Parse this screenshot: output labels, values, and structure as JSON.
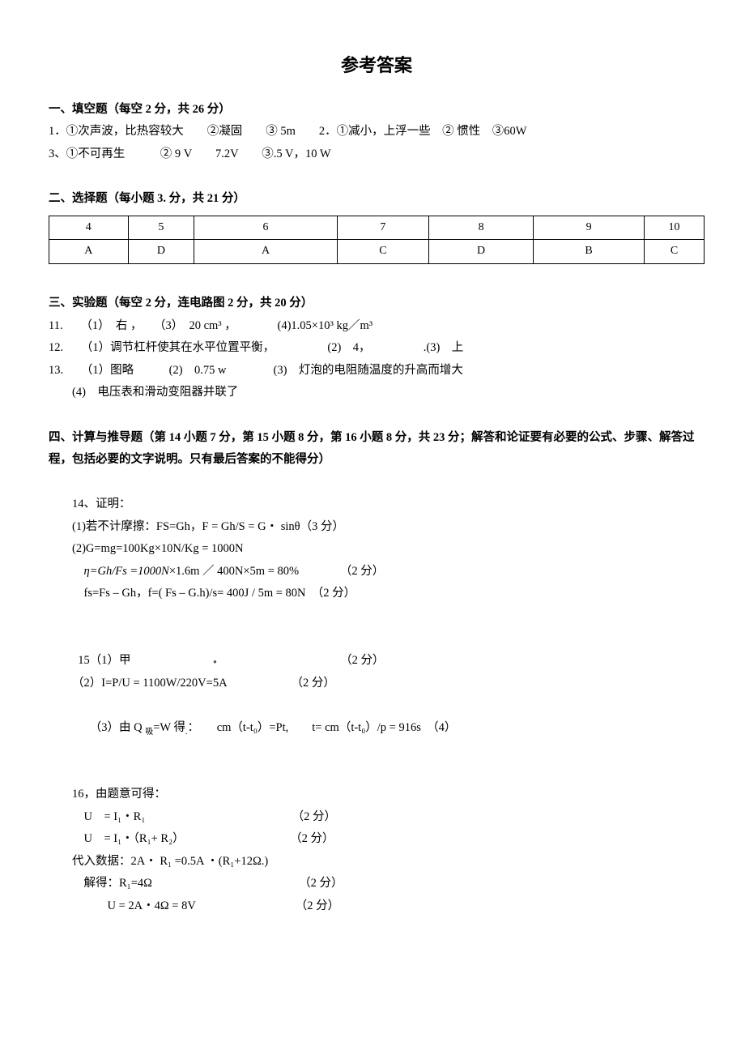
{
  "title": "参考答案",
  "s1": {
    "head_a": "一、填空题",
    "head_b": "（每空 2 分，共 26 分）",
    "l1": "1．①次声波，比热容较大　　②凝固　　③ 5m　　2．①减小，上浮一些　② 惯性　③60W",
    "l2": "3、①不可再生　　　② 9 V　　7.2V　　③.5 V，10 W"
  },
  "s2": {
    "head_a": "二、选择题",
    "head_b": "（每小题 3. 分，共 21 分）",
    "rows": {
      "r1": {
        "c1": "4",
        "c2": "5",
        "c3": "6",
        "c4": "7",
        "c5": "8",
        "c6": "9",
        "c7": "10"
      },
      "r2": {
        "c1": "A",
        "c2": "D",
        "c3": "A",
        "c4": "C",
        "c5": "D",
        "c6": "B",
        "c7": "C"
      }
    }
  },
  "s3": {
    "head_a": "三、实验题",
    "head_b": "（每空 2 分，连电路图 2 分，共 20 分）",
    "q11": "11.　　（1）　右 ，　　（3）　20 cm³ ，　　　　(4)1.05×10³ kg／m³",
    "q12": "12.　　（1）调节杠杆使其在水平位置平衡，　　　　　(2)　4，　　　　　.(3)　上",
    "q13_l1": "13.　　（1）图略　　　(2)　0.75 w　　　　(3)　灯泡的电阻随温度的升高而增大",
    "q13_l2": "(4)　电压表和滑动变阻器并联了"
  },
  "s4": {
    "head_a": "四、计算与推导题",
    "head_b": "（第 14 小题 7 分，第 15 小题 8 分，第 16  小题 8 分，共 23  分；解答和论证要有必要的公式、步骤、解答过程，包括必要的文字说明。只有最后答案的不能得分）",
    "q14_l1": "14、证明：",
    "q14_l2": "(1)若不计摩擦：FS=Gh，F = Gh/S = G・ sinθ（3 分）",
    "q14_l3": "(2)G=mg=100Kg×10N/Kg = 1000N",
    "q14_l4_a": "η=Gh/Fs =1000N",
    "q14_l4_b": "×1.6m ／ 400N×5m = 80%　　　　（2 分）",
    "q14_l5": "fs=Fs – Gh，f=( Fs – G.h)/s= 400J / 5m = 80N　（2 分）",
    "q15_l1": "15（1）甲",
    "q15_l1b": "（2 分）",
    "q15_l2": "（2）I=P/U = 1100W/220V=5A　　　　　　（2 分）",
    "q15_l3_a": "（3）由 Q ",
    "q15_l3_b": "吸",
    "q15_l3_c": "=W 得",
    "q15_l3_d": "：　　cm（t-t₀）=Pt,　　t= cm（t-t₀）/p = 916s　（4）",
    "q16_l1": "16，由题意可得：",
    "q16_l2": "U　= I₁・R₁　　　　　　　　　　　　　（2 分）",
    "q16_l3": "U　= I₁・（R₁+ R₂）　　　　　　　　　　（2 分）",
    "q16_l4": "代入数据：2A・ R₁ =0.5A ・(R₁+12Ω.)",
    "q16_l5": "解得：R₁=4Ω　　　　　　　　　　　　　（2 分）",
    "q16_l6": "U = 2A・4Ω = 8V　　　　　　　　　（2 分）"
  }
}
